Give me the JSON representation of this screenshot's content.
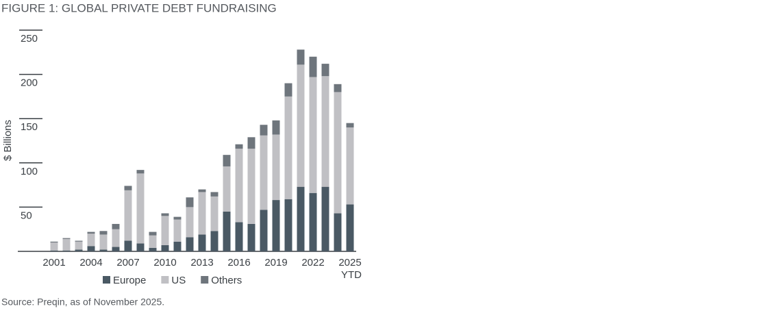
{
  "chart_data": {
    "type": "bar",
    "stacked": true,
    "title": "FIGURE 1: GLOBAL PRIVATE DEBT FUNDRAISING",
    "y_label": "$ Billions",
    "source": "Source: Preqin, as of November 2025.",
    "categories": [
      "2001",
      null,
      null,
      "2004",
      null,
      null,
      "2007",
      null,
      null,
      "2010",
      null,
      null,
      "2013",
      null,
      null,
      "2016",
      null,
      null,
      "2019",
      null,
      null,
      "2022",
      null,
      null,
      "2025 YTD"
    ],
    "series": [
      {
        "name": "Europe",
        "color": "#4a5964",
        "values": [
          1,
          1,
          2,
          6,
          2,
          5,
          12,
          9,
          4,
          7,
          11,
          16,
          19,
          23,
          45,
          33,
          31,
          47,
          58,
          59,
          73,
          66,
          73,
          43,
          53
        ]
      },
      {
        "name": "US",
        "color": "#c0c0c4",
        "values": [
          9,
          13,
          9,
          14,
          17,
          20,
          57,
          79,
          14,
          33,
          25,
          34,
          48,
          39,
          51,
          83,
          85,
          84,
          74,
          116,
          138,
          131,
          125,
          137,
          87
        ]
      },
      {
        "name": "Others",
        "color": "#6e757c",
        "values": [
          1,
          1,
          1,
          2,
          4,
          6,
          5,
          4,
          4,
          3,
          3,
          11,
          3,
          5,
          13,
          5,
          13,
          12,
          16,
          15,
          17,
          23,
          14,
          9,
          5
        ]
      }
    ],
    "ylim": [
      0,
      250
    ],
    "yticks": [
      50,
      100,
      150,
      200,
      250
    ],
    "legend": "bottom"
  }
}
